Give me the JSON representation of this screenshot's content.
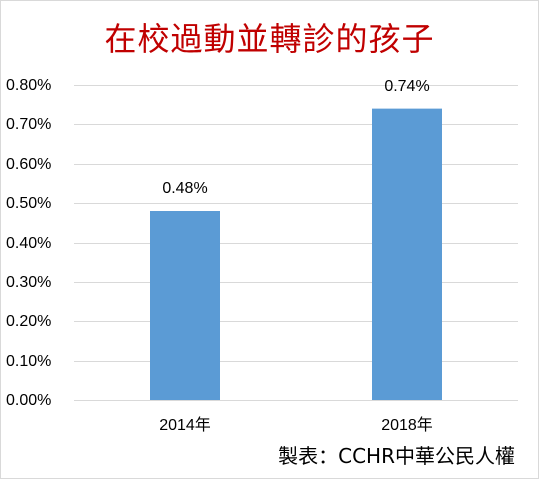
{
  "chart_data": {
    "type": "bar",
    "title": "在校過動並轉診的孩子",
    "categories": [
      "2014年",
      "2018年"
    ],
    "values": [
      0.48,
      0.74
    ],
    "data_labels": [
      "0.48%",
      "0.74%"
    ],
    "value_unit": "%",
    "ylim": [
      0,
      0.8
    ],
    "yticks": [
      0,
      0.1,
      0.2,
      0.3,
      0.4,
      0.5,
      0.6,
      0.7,
      0.8
    ],
    "ytick_labels": [
      "0.00%",
      "0.10%",
      "0.20%",
      "0.30%",
      "0.40%",
      "0.50%",
      "0.60%",
      "0.70%",
      "0.80%"
    ],
    "grid": true,
    "bar_color": "#5b9bd5",
    "title_color": "#c00000",
    "grid_color": "#d9d9d9"
  },
  "credit": "製表：CCHR中華公民人權"
}
